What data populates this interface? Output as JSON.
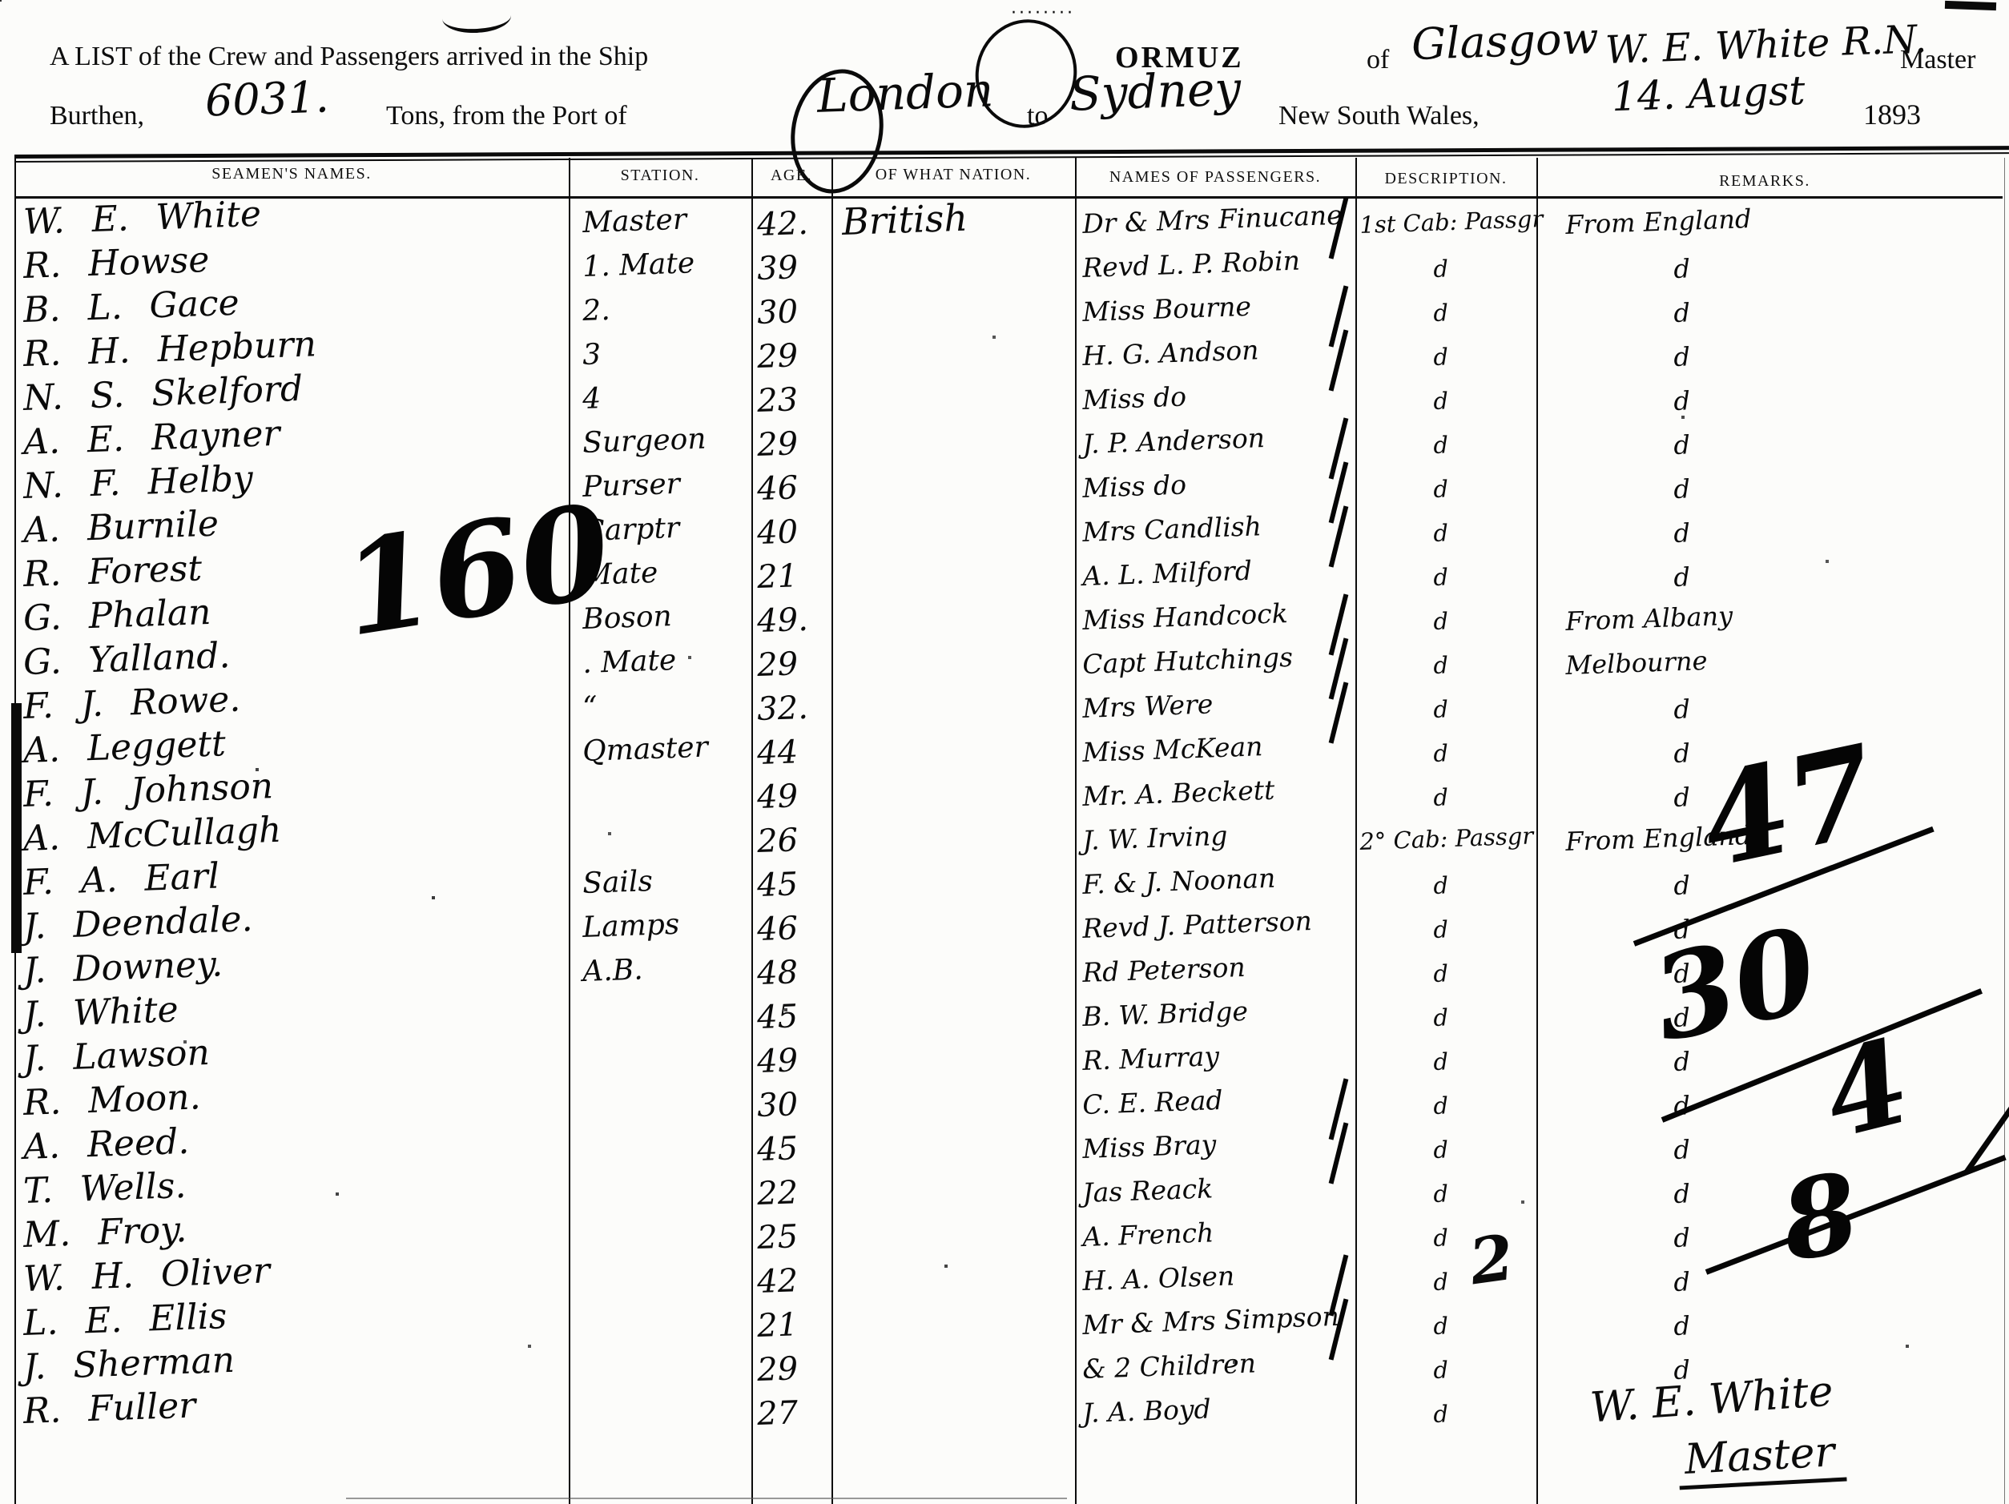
{
  "header": {
    "line1_printed": "A LIST of the Crew and Passengers arrived in the Ship",
    "ship_name": "ORMUZ",
    "of_label": "of",
    "port_of_registry": "Glasgow",
    "master_name": "W. E. White R.N.",
    "master_label": "Master",
    "burthen_label": "Burthen,",
    "tons_value": "6031.",
    "tons_label": "Tons, from the Port of",
    "port_from": "London",
    "to_label": "to",
    "port_to": "Sydney",
    "colony_label": "New South Wales,",
    "date_handwritten": "14. Augst",
    "year_printed": "1893"
  },
  "table": {
    "headers": [
      "SEAMEN'S NAMES.",
      "STATION.",
      "AGE.",
      "OF WHAT NATION.",
      "NAMES OF PASSENGERS.",
      "DESCRIPTION.",
      "REMARKS."
    ],
    "rows": [
      {
        "name": "W. E. White",
        "station": "Master",
        "age": "42.",
        "nation": "British",
        "passenger": "Dr & Mrs Finucane",
        "description": "1st Cab: Passgr",
        "remarks": "From England"
      },
      {
        "name": "R. Howse",
        "station": "1. Mate",
        "age": "39",
        "nation": "",
        "passenger": "Revd L. P. Robin",
        "description": "d",
        "remarks": "d"
      },
      {
        "name": "B. L. Gace",
        "station": "2.",
        "age": "30",
        "nation": "",
        "passenger": "Miss Bourne",
        "description": "d",
        "remarks": "d"
      },
      {
        "name": "R. H. Hepburn",
        "station": "3",
        "age": "29",
        "nation": "",
        "passenger": "H. G. Andson",
        "description": "d",
        "remarks": "d"
      },
      {
        "name": "N. S. Skelford",
        "station": "4",
        "age": "23",
        "nation": "",
        "passenger": "Miss do",
        "description": "d",
        "remarks": "d"
      },
      {
        "name": "A. E. Rayner",
        "station": "Surgeon",
        "age": "29",
        "nation": "",
        "passenger": "J. P. Anderson",
        "description": "d",
        "remarks": "d"
      },
      {
        "name": "N. F. Helby",
        "station": "Purser",
        "age": "46",
        "nation": "",
        "passenger": "Miss do",
        "description": "d",
        "remarks": "d"
      },
      {
        "name": "A. Burnile",
        "station": "Carptr",
        "age": "40",
        "nation": "",
        "passenger": "Mrs Candlish",
        "description": "d",
        "remarks": "d"
      },
      {
        "name": "R. Forest",
        "station": "Mate",
        "age": "21",
        "nation": "",
        "passenger": "A. L. Milford",
        "description": "d",
        "remarks": "d"
      },
      {
        "name": "G. Phalan",
        "station": "Boson",
        "age": "49.",
        "nation": "",
        "passenger": "Miss Handcock",
        "description": "d",
        "remarks": "From Albany"
      },
      {
        "name": "G. Yalland.",
        "station": ". Mate",
        "age": "29",
        "nation": "",
        "passenger": "Capt Hutchings",
        "description": "d",
        "remarks": "Melbourne"
      },
      {
        "name": "F. J. Rowe.",
        "station": "“",
        "age": "32.",
        "nation": "",
        "passenger": "Mrs Were",
        "description": "d",
        "remarks": "d"
      },
      {
        "name": "A. Leggett",
        "station": "Qmaster",
        "age": "44",
        "nation": "",
        "passenger": "Miss McKean",
        "description": "d",
        "remarks": "d"
      },
      {
        "name": "F. J. Johnson",
        "station": "",
        "age": "49",
        "nation": "",
        "passenger": "Mr. A. Beckett",
        "description": "d",
        "remarks": "d"
      },
      {
        "name": "A. McCullagh",
        "station": "",
        "age": "26",
        "nation": "",
        "passenger": "J. W. Irving",
        "description": "2° Cab: Passgr",
        "remarks": "From England"
      },
      {
        "name": "F. A. Earl",
        "station": "Sails",
        "age": "45",
        "nation": "",
        "passenger": "F. & J. Noonan",
        "description": "d",
        "remarks": "d"
      },
      {
        "name": "J. Deendale.",
        "station": "Lamps",
        "age": "46",
        "nation": "",
        "passenger": "Revd J. Patterson",
        "description": "d",
        "remarks": "d"
      },
      {
        "name": "J. Downey.",
        "station": "A.B.",
        "age": "48",
        "nation": "",
        "passenger": "Rd Peterson",
        "description": "d",
        "remarks": "d"
      },
      {
        "name": "J. White",
        "station": "",
        "age": "45",
        "nation": "",
        "passenger": "B. W. Bridge",
        "description": "d",
        "remarks": "d"
      },
      {
        "name": "J. Lawson",
        "station": "",
        "age": "49",
        "nation": "",
        "passenger": "R. Murray",
        "description": "d",
        "remarks": "d"
      },
      {
        "name": "R. Moon.",
        "station": "",
        "age": "30",
        "nation": "",
        "passenger": "C. E. Read",
        "description": "d",
        "remarks": "d"
      },
      {
        "name": "A. Reed.",
        "station": "",
        "age": "45",
        "nation": "",
        "passenger": "Miss Bray",
        "description": "d",
        "remarks": "d"
      },
      {
        "name": "T. Wells.",
        "station": "",
        "age": "22",
        "nation": "",
        "passenger": "Jas Reack",
        "description": "d",
        "remarks": "d"
      },
      {
        "name": "M. Froy.",
        "station": "",
        "age": "25",
        "nation": "",
        "passenger": "A. French",
        "description": "d",
        "remarks": "d"
      },
      {
        "name": "W. H. Oliver",
        "station": "",
        "age": "42",
        "nation": "",
        "passenger": "H. A. Olsen",
        "description": "d",
        "remarks": "d"
      },
      {
        "name": "L. E. Ellis",
        "station": "",
        "age": "21",
        "nation": "",
        "passenger": "Mr & Mrs Simpson",
        "description": "d",
        "remarks": "d"
      },
      {
        "name": "J. Sherman",
        "station": "",
        "age": "29",
        "nation": "",
        "passenger": "& 2 Children",
        "description": "d",
        "remarks": "d"
      },
      {
        "name": "R. Fuller",
        "station": "",
        "age": "27",
        "nation": "",
        "passenger": "J. A. Boyd",
        "description": "d",
        "remarks": ""
      }
    ]
  },
  "annotations": {
    "crew_total_scrawl": "160",
    "tally_47": "47",
    "tally_30": "30",
    "tally_4": "4",
    "tally_8": "8",
    "description_scrawl": "2",
    "tally_slash_rows": [
      1,
      3,
      4,
      6,
      7,
      8,
      10,
      11,
      12,
      21,
      22,
      25,
      26
    ]
  },
  "signature": {
    "name": "W. E. White",
    "title": "Master"
  }
}
